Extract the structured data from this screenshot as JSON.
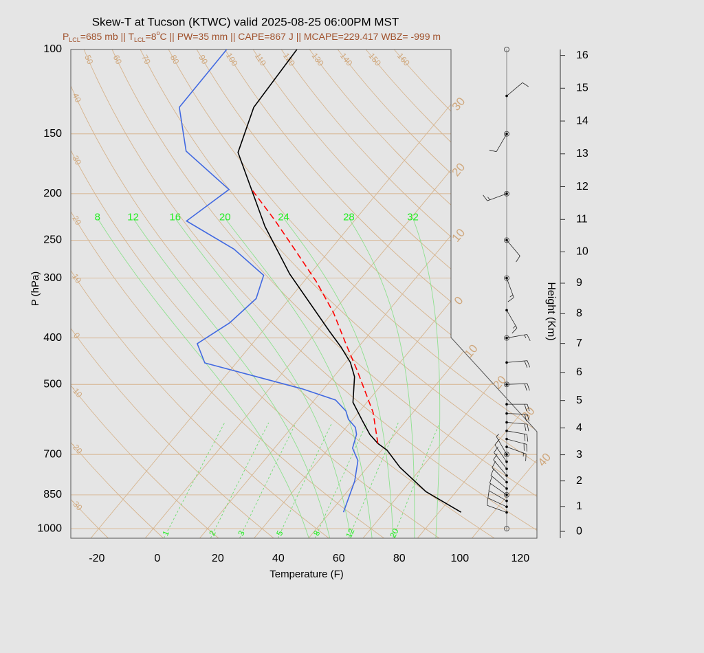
{
  "chart_data": {
    "type": "skewt",
    "title": "Skew-T at Tucson (KTWC) valid 2025-08-25 06:00PM MST",
    "subtitle": [
      "P",
      "LCL",
      "=685 mb || T",
      "LCL",
      "=8",
      "o",
      "C || PW=35 mm || CAPE=867 J || MCAPE=229.417 WBZ= -999 m"
    ],
    "subtitle_color": "#a0522d",
    "xlabel": "Temperature (F)",
    "ylabel": "P (hPa)",
    "y2label": "Height (Km)",
    "xlim": [
      -28.6,
      125.5
    ],
    "xticks": [
      -20,
      0,
      20,
      40,
      60,
      80,
      100,
      120
    ],
    "ylim": [
      1047,
      100
    ],
    "log_y": true,
    "yticks": [
      1000,
      850,
      700,
      500,
      400,
      300,
      250,
      200,
      150,
      100
    ],
    "y2ticks": [
      0,
      1,
      2,
      3,
      4,
      5,
      6,
      7,
      8,
      9,
      10,
      11,
      12,
      13,
      14,
      15,
      16
    ],
    "grid": true,
    "grid_color": "#d6b48e",
    "isotherms": [
      {
        "value": -30,
        "label": "30"
      },
      {
        "value": -20,
        "label": "20"
      },
      {
        "value": -10,
        "label": "10"
      },
      0,
      10,
      20,
      30,
      40
    ],
    "dry_adiabats": [
      -30,
      -20,
      -10,
      0,
      10,
      20,
      30,
      40,
      50,
      60,
      70,
      80,
      90,
      100,
      110,
      120,
      130,
      140,
      150,
      160
    ],
    "moist_adiabats": [
      8,
      12,
      16,
      20,
      24,
      28,
      32
    ],
    "mixing_ratios": [
      1,
      2,
      3,
      5,
      8,
      12,
      20
    ],
    "series": [
      {
        "color": "#000000",
        "p": [
          924,
          837,
          745,
          686,
          664,
          636,
          595,
          545,
          482,
          450,
          418,
          388,
          294,
          234,
          164,
          132,
          100
        ],
        "values": [
          93.3,
          76.0,
          60.8,
          51.8,
          46.9,
          41.8,
          35.5,
          27.4,
          20.9,
          15.6,
          8.3,
          0.3,
          -28.8,
          -50.0,
          -79.2,
          -86.4,
          -88.0
        ]
      },
      {
        "color": "#4169e1",
        "p": [
          924,
          796,
          721,
          679,
          636,
          615,
          591,
          568,
          539,
          511,
          451,
          411,
          372,
          331,
          296,
          261,
          228,
          196,
          163,
          132,
          100
        ],
        "values": [
          54.4,
          49.6,
          45.0,
          39.8,
          37.4,
          35.1,
          30.5,
          27.4,
          21.0,
          7.0,
          -32.4,
          -40.2,
          -35.2,
          -33.1,
          -37.0,
          -54.0,
          -77.4,
          -72.0,
          -96.7,
          -111.0,
          -111.2
        ]
      },
      {
        "color": "#ff0000",
        "dash": true,
        "p": [
          664,
          572,
          469,
          411,
          354,
          305,
          263,
          227,
          197
        ],
        "values": [
          46.9,
          36.8,
          20.3,
          8.9,
          -3.7,
          -17.9,
          -33.2,
          -48.5,
          -63.9
        ]
      }
    ],
    "winds": {
      "p": [
        925,
        900,
        875,
        850,
        825,
        800,
        775,
        750,
        725,
        700,
        675,
        650,
        625,
        600,
        575,
        550,
        500,
        450,
        400,
        350,
        300,
        250,
        200,
        150,
        125
      ],
      "dir": [
        290,
        295,
        300,
        305,
        310,
        315,
        320,
        322,
        325,
        330,
        110,
        105,
        100,
        95,
        92,
        90,
        88,
        85,
        80,
        150,
        160,
        140,
        250,
        210,
        50
      ],
      "speed": [
        10,
        12,
        12,
        12,
        12,
        12,
        12,
        10,
        10,
        8,
        15,
        20,
        20,
        20,
        20,
        20,
        20,
        20,
        15,
        15,
        15,
        10,
        15,
        10,
        10
      ]
    }
  }
}
